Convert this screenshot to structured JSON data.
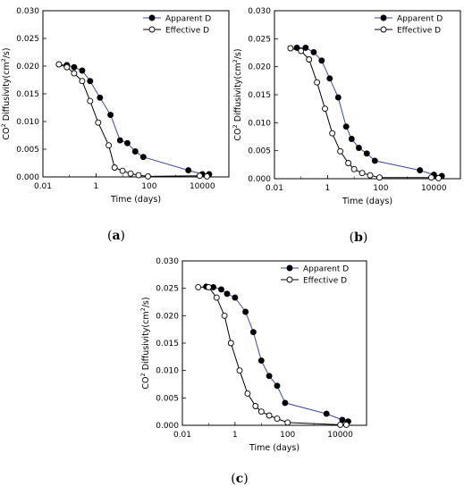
{
  "chart_data": [
    {
      "type": "scatter",
      "panel": "(a)",
      "panel_letter": "a",
      "xlabel": "Time (days)",
      "ylabel_prefix": "CO",
      "ylabel_sup1": "2",
      "ylabel_mid": " Diffusivity(cm",
      "ylabel_sup2": "2",
      "ylabel_suffix": "/s)",
      "x_scale": "log",
      "xlim": [
        0.01,
        100000
      ],
      "ylim": [
        0,
        0.03
      ],
      "xticks": [
        "0.01",
        "1",
        "100",
        "10000"
      ],
      "yticks": [
        "0.000",
        "0.005",
        "0.010",
        "0.015",
        "0.020",
        "0.025",
        "0.030"
      ],
      "legend_position": "top-right",
      "grid": false,
      "series": [
        {
          "name": "Apparent D",
          "marker": "filled-circle",
          "x": [
            0.04,
            0.08,
            0.15,
            0.3,
            0.6,
            1.4,
            3.5,
            8,
            15,
            30,
            60,
            3000,
            10000,
            18000
          ],
          "y": [
            0.0203,
            0.0202,
            0.0198,
            0.0192,
            0.0173,
            0.0143,
            0.0112,
            0.0066,
            0.0061,
            0.0046,
            0.0036,
            0.0012,
            0.0005,
            0.0005
          ]
        },
        {
          "name": "Effective D",
          "marker": "open-circle",
          "x": [
            0.04,
            0.08,
            0.15,
            0.3,
            0.6,
            1.2,
            3,
            5,
            10,
            20,
            40,
            90,
            8000,
            15000
          ],
          "y": [
            0.0203,
            0.0198,
            0.0187,
            0.0173,
            0.0137,
            0.0098,
            0.0057,
            0.0017,
            0.0011,
            0.0006,
            0.0003,
            0.0001,
            0.0002,
            0.0001
          ]
        }
      ]
    },
    {
      "type": "scatter",
      "panel": "(b)",
      "panel_letter": "b",
      "xlabel": "Time (days)",
      "ylabel_prefix": "CO",
      "ylabel_sup1": "2",
      "ylabel_mid": " Diffusivity(cm",
      "ylabel_sup2": "2",
      "ylabel_suffix": "/s)",
      "x_scale": "log",
      "xlim": [
        0.01,
        100000
      ],
      "ylim": [
        0,
        0.03
      ],
      "xticks": [
        "0.01",
        "1",
        "100",
        "10000"
      ],
      "yticks": [
        "0.000",
        "0.005",
        "0.010",
        "0.015",
        "0.020",
        "0.025",
        "0.030"
      ],
      "legend_position": "top-right",
      "grid": false,
      "series": [
        {
          "name": "Apparent D",
          "marker": "filled-circle",
          "x": [
            0.07,
            0.15,
            0.3,
            0.6,
            1.2,
            2.5,
            5,
            8,
            15,
            30,
            60,
            3000,
            10000,
            20000
          ],
          "y": [
            0.0234,
            0.0234,
            0.0226,
            0.0211,
            0.0179,
            0.0145,
            0.0093,
            0.0071,
            0.0055,
            0.0045,
            0.0032,
            0.0015,
            0.0007,
            0.0005
          ]
        },
        {
          "name": "Effective D",
          "marker": "open-circle",
          "x": [
            0.04,
            0.1,
            0.2,
            0.4,
            0.8,
            1.5,
            3,
            6,
            10,
            20,
            40,
            90,
            8000,
            15000
          ],
          "y": [
            0.0233,
            0.0228,
            0.0213,
            0.0172,
            0.0125,
            0.0081,
            0.0049,
            0.0028,
            0.0017,
            0.001,
            0.0006,
            0.0002,
            0.0002,
            0.0001
          ]
        }
      ]
    },
    {
      "type": "scatter",
      "panel": "(c)",
      "panel_letter": "c",
      "xlabel": "Time (days)",
      "ylabel_prefix": "CO",
      "ylabel_sup1": "2",
      "ylabel_mid": " Diffusivity(cm",
      "ylabel_sup2": "2",
      "ylabel_suffix": "/s)",
      "x_scale": "log",
      "xlim": [
        0.01,
        100000
      ],
      "ylim": [
        0,
        0.03
      ],
      "xticks": [
        "0.01",
        "1",
        "100",
        "10000"
      ],
      "yticks": [
        "0.000",
        "0.005",
        "0.010",
        "0.015",
        "0.020",
        "0.025",
        "0.030"
      ],
      "legend_position": "top-right",
      "grid": false,
      "series": [
        {
          "name": "Apparent D",
          "marker": "filled-circle",
          "x": [
            0.08,
            0.15,
            0.3,
            0.5,
            1,
            2.5,
            5,
            10,
            20,
            40,
            80,
            3000,
            12000,
            20000
          ],
          "y": [
            0.0253,
            0.0252,
            0.0248,
            0.024,
            0.0233,
            0.0207,
            0.017,
            0.0118,
            0.009,
            0.0072,
            0.0041,
            0.0021,
            0.001,
            0.0007
          ]
        },
        {
          "name": "Effective D",
          "marker": "open-circle",
          "x": [
            0.04,
            0.1,
            0.2,
            0.4,
            0.7,
            1.5,
            3,
            6,
            10,
            20,
            40,
            100,
            10000,
            17000
          ],
          "y": [
            0.0252,
            0.0252,
            0.0233,
            0.02,
            0.015,
            0.01,
            0.0058,
            0.0035,
            0.0025,
            0.0018,
            0.0012,
            0.0005,
            0.0001,
            0.0001
          ]
        }
      ]
    }
  ]
}
